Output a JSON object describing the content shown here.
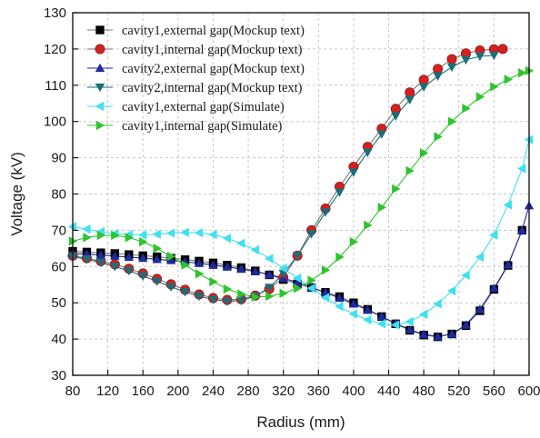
{
  "chart_data": {
    "type": "line",
    "title": "",
    "xlabel": "Radius (mm)",
    "ylabel": "Voltage (kV)",
    "xlim": [
      80,
      600
    ],
    "ylim": [
      30,
      130
    ],
    "xticks": [
      80,
      120,
      160,
      200,
      240,
      280,
      320,
      360,
      400,
      440,
      480,
      520,
      560,
      600
    ],
    "yticks": [
      30,
      40,
      50,
      60,
      70,
      80,
      90,
      100,
      110,
      120,
      130
    ],
    "grid": true,
    "legend_position": "top-left",
    "series": [
      {
        "name": "cavity1,external gap(Mockup text)",
        "marker": "square",
        "color": "#000000",
        "line_color": "#7a7a7a",
        "x": [
          80,
          96,
          112,
          128,
          144,
          160,
          176,
          192,
          208,
          224,
          240,
          256,
          272,
          288,
          304,
          320,
          336,
          352,
          368,
          384,
          400,
          416,
          432,
          448,
          464,
          480,
          496,
          512,
          528,
          544,
          560,
          576,
          592
        ],
        "y": [
          64.2,
          64.0,
          63.8,
          63.6,
          63.3,
          63.0,
          62.7,
          62.3,
          61.9,
          61.5,
          61.0,
          60.4,
          59.7,
          58.8,
          57.7,
          56.4,
          55.2,
          54.2,
          52.9,
          51.7,
          50.0,
          48.2,
          46.2,
          44.2,
          42.4,
          41.1,
          40.6,
          41.4,
          43.7,
          47.8,
          53.7,
          60.3,
          70.0
        ]
      },
      {
        "name": "cavity1,internal gap(Mockup text)",
        "marker": "circle",
        "color": "#d42020",
        "line_color": "#7a7a7a",
        "x": [
          80,
          96,
          112,
          128,
          144,
          160,
          176,
          192,
          208,
          224,
          240,
          256,
          272,
          288,
          304,
          320,
          336,
          352,
          368,
          384,
          400,
          416,
          432,
          448,
          464,
          480,
          496,
          512,
          528,
          544,
          560,
          570
        ],
        "y": [
          63.0,
          62.3,
          61.5,
          60.6,
          59.4,
          58.1,
          56.6,
          55.1,
          53.6,
          52.3,
          51.3,
          50.8,
          51.0,
          52.0,
          53.8,
          57.0,
          63.0,
          70.0,
          76.0,
          82.0,
          87.5,
          93.0,
          98.0,
          103.5,
          108.0,
          111.5,
          114.5,
          117.2,
          118.8,
          119.6,
          119.9,
          120.0
        ]
      },
      {
        "name": "cavity2,external gap(Mockup text)",
        "marker": "triangle-up",
        "color": "#1f2a9e",
        "line_color": "#1f2a9e",
        "x": [
          80,
          96,
          112,
          128,
          144,
          160,
          176,
          192,
          208,
          224,
          240,
          256,
          272,
          288,
          304,
          320,
          336,
          352,
          368,
          384,
          400,
          416,
          432,
          448,
          464,
          480,
          496,
          512,
          528,
          544,
          560,
          576,
          592,
          600
        ],
        "y": [
          63.6,
          63.4,
          63.2,
          62.9,
          62.6,
          62.3,
          62.0,
          61.7,
          61.3,
          60.9,
          60.4,
          59.9,
          59.3,
          58.6,
          57.8,
          56.8,
          55.6,
          54.2,
          52.8,
          51.3,
          49.7,
          48.0,
          46.2,
          44.3,
          42.6,
          41.3,
          40.7,
          41.4,
          43.9,
          48.2,
          54.0,
          60.5,
          70.0,
          76.8
        ]
      },
      {
        "name": "cavity2,internal gap(Mockup text)",
        "marker": "triangle-down",
        "color": "#1b6e78",
        "line_color": "#1b6e78",
        "x": [
          80,
          96,
          112,
          128,
          144,
          160,
          176,
          192,
          208,
          224,
          240,
          256,
          272,
          288,
          304,
          320,
          336,
          352,
          368,
          384,
          400,
          416,
          432,
          448,
          464,
          480,
          496,
          512,
          528,
          544,
          560
        ],
        "y": [
          62.7,
          62.0,
          61.1,
          60.0,
          58.8,
          57.4,
          55.9,
          54.4,
          53.0,
          51.8,
          50.9,
          50.4,
          50.6,
          51.8,
          54.2,
          58.0,
          63.0,
          69.0,
          75.0,
          80.5,
          86.0,
          91.5,
          96.5,
          101.5,
          106.0,
          109.5,
          112.5,
          115.0,
          117.0,
          118.0,
          118.2
        ]
      },
      {
        "name": "cavity1,external gap(Simulate)",
        "marker": "triangle-left",
        "color": "#3fe0f0",
        "line_color": "#3fe0f0",
        "x": [
          80,
          96,
          112,
          128,
          144,
          160,
          176,
          192,
          208,
          224,
          240,
          256,
          272,
          288,
          304,
          320,
          336,
          352,
          368,
          384,
          400,
          416,
          432,
          448,
          464,
          480,
          496,
          512,
          528,
          544,
          560,
          576,
          592,
          600
        ],
        "y": [
          71.0,
          70.3,
          69.6,
          69.1,
          68.8,
          68.7,
          68.9,
          69.2,
          69.4,
          69.3,
          68.8,
          67.8,
          66.4,
          64.6,
          62.2,
          59.5,
          56.8,
          54.0,
          51.4,
          49.0,
          46.9,
          45.3,
          44.2,
          43.9,
          44.8,
          46.8,
          49.7,
          53.3,
          57.6,
          62.6,
          68.7,
          77.0,
          87.0,
          95.0
        ]
      },
      {
        "name": "cavity1,internal gap(Simulate)",
        "marker": "triangle-right",
        "color": "#2fc42f",
        "line_color": "#2fc42f",
        "x": [
          80,
          96,
          112,
          128,
          144,
          160,
          176,
          192,
          208,
          224,
          240,
          256,
          272,
          288,
          304,
          320,
          336,
          352,
          368,
          384,
          400,
          416,
          432,
          448,
          464,
          480,
          496,
          512,
          528,
          544,
          560,
          576,
          592,
          600
        ],
        "y": [
          67.0,
          68.0,
          68.6,
          68.6,
          68.0,
          66.8,
          65.0,
          62.8,
          60.4,
          58.0,
          55.8,
          53.8,
          52.4,
          51.6,
          51.8,
          52.6,
          54.0,
          56.2,
          59.0,
          62.6,
          66.8,
          71.4,
          76.3,
          81.4,
          86.4,
          91.3,
          95.8,
          100.0,
          103.6,
          106.8,
          109.6,
          111.6,
          113.4,
          114.0
        ]
      }
    ]
  }
}
